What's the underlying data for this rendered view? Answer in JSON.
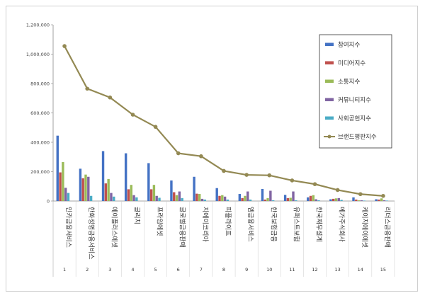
{
  "chart_data": {
    "type": "bar",
    "categories": [
      "인카금융서비스",
      "한화생명금융서비스",
      "에이플러스에셋",
      "글리치",
      "프라임에셋",
      "글로벌금융판매",
      "지에이코리아",
      "피플라이프",
      "엠금융서비스",
      "한국보험금융",
      "유퍼스트보험",
      "한국재무설계",
      "메가주식회사",
      "케이지에이에셋",
      "리더스금융판매"
    ],
    "x": [
      "1",
      "2",
      "3",
      "4",
      "5",
      "6",
      "7",
      "8",
      "9",
      "10",
      "11",
      "12",
      "13",
      "14",
      "15"
    ],
    "ylim": [
      0,
      1200000
    ],
    "yticks": [
      "0",
      "200,000",
      "400,000",
      "600,000",
      "800,000",
      "1,000,000",
      "1,200,000"
    ],
    "ytick_values": [
      0,
      200000,
      400000,
      600000,
      800000,
      1000000,
      1200000
    ],
    "legend_position": "right",
    "grid": false,
    "series": [
      {
        "name": "참여지수",
        "type": "bar",
        "color": "#4472c4",
        "values": [
          445000,
          220000,
          340000,
          325000,
          258000,
          140000,
          165000,
          88000,
          48000,
          82000,
          42000,
          25000,
          12000,
          25000,
          12000
        ]
      },
      {
        "name": "미디어지수",
        "type": "bar",
        "color": "#c0504d",
        "values": [
          195000,
          155000,
          120000,
          80000,
          80000,
          60000,
          50000,
          35000,
          20000,
          10000,
          20000,
          35000,
          15000,
          10000,
          10000
        ]
      },
      {
        "name": "소통지수",
        "type": "bar",
        "color": "#9bbb59",
        "values": [
          265000,
          180000,
          150000,
          110000,
          110000,
          40000,
          48000,
          40000,
          35000,
          20000,
          22000,
          40000,
          18000,
          5000,
          18000
        ]
      },
      {
        "name": "커뮤니티지수",
        "type": "bar",
        "color": "#8064a2",
        "values": [
          90000,
          165000,
          55000,
          40000,
          35000,
          65000,
          15000,
          30000,
          65000,
          70000,
          65000,
          12000,
          20000,
          5000,
          5000
        ]
      },
      {
        "name": "사회공헌지수",
        "type": "bar",
        "color": "#4bacc6",
        "values": [
          55000,
          35000,
          30000,
          25000,
          22000,
          20000,
          10000,
          10000,
          10000,
          5000,
          5000,
          5000,
          8000,
          3000,
          3000
        ]
      },
      {
        "name": "브랜드평판지수",
        "type": "line",
        "color": "#938953",
        "values": [
          1055000,
          765000,
          705000,
          588000,
          505000,
          325000,
          305000,
          205000,
          178000,
          175000,
          140000,
          115000,
          75000,
          47000,
          35000
        ]
      }
    ]
  }
}
